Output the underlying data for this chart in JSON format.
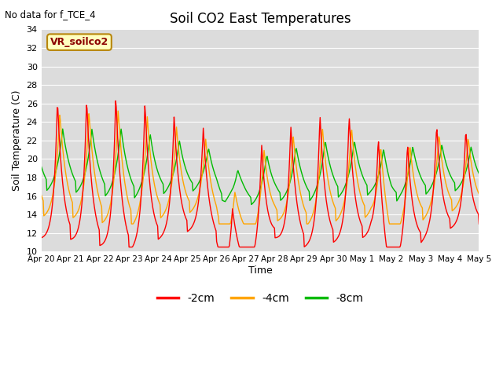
{
  "title": "Soil CO2 East Temperatures",
  "xlabel": "Time",
  "ylabel": "Soil Temperature (C)",
  "note": "No data for f_TCE_4",
  "annotation": "VR_soilco2",
  "ylim": [
    10,
    34
  ],
  "yticks": [
    10,
    12,
    14,
    16,
    18,
    20,
    22,
    24,
    26,
    28,
    30,
    32,
    34
  ],
  "bg_color": "#dcdcdc",
  "line_colors": {
    "2cm": "#ff0000",
    "4cm": "#ffa500",
    "8cm": "#00bb00"
  },
  "legend": [
    "-2cm",
    "-4cm",
    "-8cm"
  ],
  "tick_labels": [
    "Apr 20",
    "Apr 21",
    "Apr 22",
    "Apr 23",
    "Apr 24",
    "Apr 25",
    "Apr 26",
    "Apr 27",
    "Apr 28",
    "Apr 29",
    "Apr 30",
    "May 1",
    "May 2",
    "May 3",
    "May 4",
    "May 5"
  ],
  "num_days": 15,
  "pts_per_day": 48
}
